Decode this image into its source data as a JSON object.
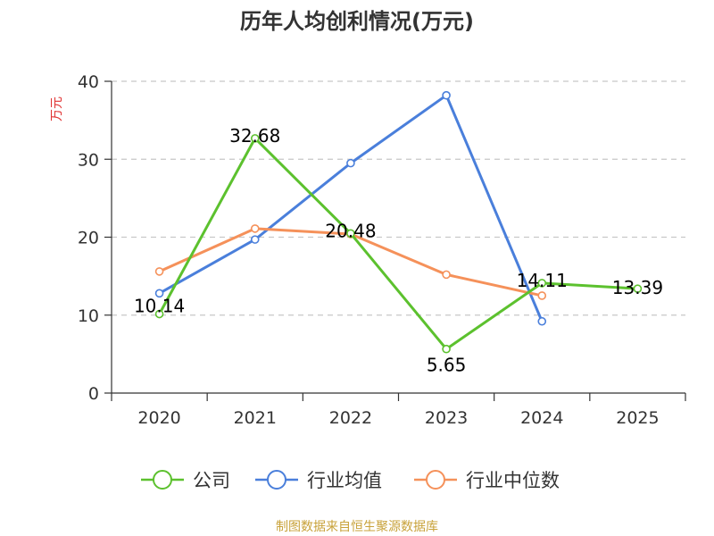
{
  "chart_data": {
    "type": "line",
    "title": "历年人均创利情况(万元)",
    "ylabel": "万元",
    "categories": [
      "2020",
      "2021",
      "2022",
      "2023",
      "2024",
      "2025"
    ],
    "ylim": [
      0,
      40
    ],
    "yticks": [
      0,
      10,
      20,
      30,
      40
    ],
    "grid": "horizontal-dashed",
    "legend_position": "bottom",
    "series": [
      {
        "name": "公司",
        "color": "#5cc12e",
        "values": [
          10.14,
          32.68,
          20.48,
          5.65,
          14.11,
          13.39
        ],
        "labels": [
          "10.14",
          "32.68",
          "20.48",
          "5.65",
          "14.11",
          "13.39"
        ]
      },
      {
        "name": "行业均值",
        "color": "#4a7fdb",
        "values": [
          12.8,
          19.7,
          29.5,
          38.2,
          9.2,
          null
        ]
      },
      {
        "name": "行业中位数",
        "color": "#f5915a",
        "values": [
          15.6,
          21.1,
          20.4,
          15.2,
          12.5,
          null
        ]
      }
    ]
  },
  "footer": {
    "source": "制图数据来自恒生聚源数据库"
  },
  "colors": {
    "ylabel": "#e03030",
    "source": "#c8a23a",
    "axis": "#333333",
    "grid": "#c8c8c8"
  }
}
